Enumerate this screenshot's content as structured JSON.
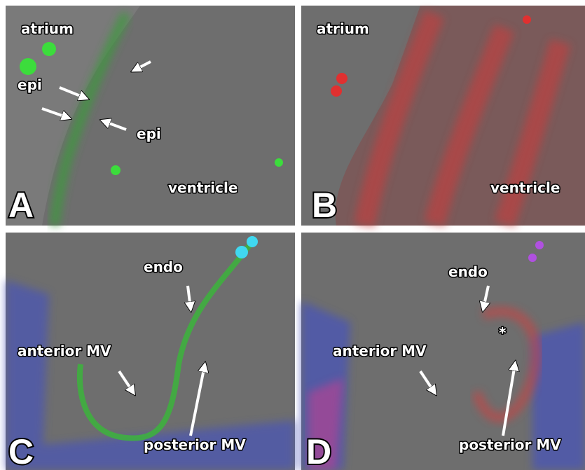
{
  "panels": [
    {
      "letter": "A",
      "labels": [
        "atrium",
        "epi",
        "epi",
        "ventricle"
      ]
    },
    {
      "letter": "B",
      "labels": [
        "atrium",
        "ventricle"
      ]
    },
    {
      "letter": "C",
      "labels": [
        "endo",
        "anterior MV",
        "posterior MV"
      ]
    },
    {
      "letter": "D",
      "labels": [
        "endo",
        "*",
        "anterior MV",
        "posterior MV"
      ]
    }
  ]
}
